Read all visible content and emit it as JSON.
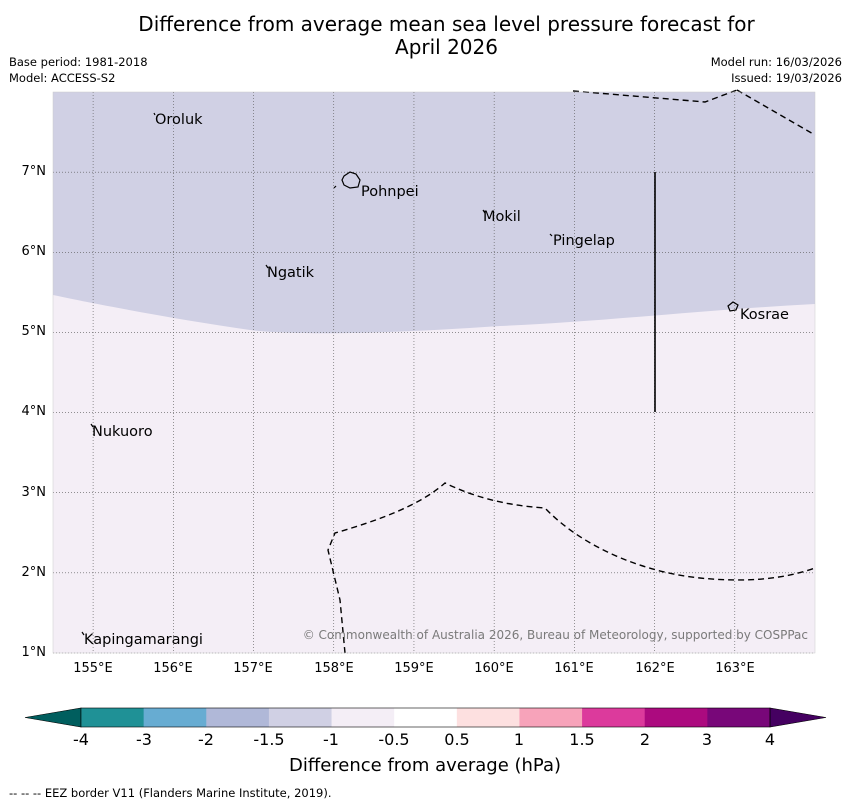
{
  "header": {
    "title_line1": "Difference from average mean sea level pressure forecast for",
    "title_line2": "April 2026",
    "base_period": "Base period: 1981-2018",
    "model": "Model: ACCESS-S2",
    "model_run": "Model run: 16/03/2026",
    "issued": "Issued: 19/03/2026"
  },
  "map": {
    "lon_range": [
      154.5,
      164.0
    ],
    "lat_range": [
      1.0,
      8.0
    ],
    "lat_labels": [
      "7°N",
      "6°N",
      "5°N",
      "4°N",
      "3°N",
      "2°N",
      "1°N"
    ],
    "lon_labels": [
      "155°E",
      "156°E",
      "157°E",
      "158°E",
      "159°E",
      "160°E",
      "161°E",
      "162°E",
      "163°E"
    ],
    "places": [
      {
        "name": "Oroluk",
        "lon": 155.75,
        "lat": 7.62
      },
      {
        "name": "Pohnpei",
        "lon": 158.32,
        "lat": 6.83
      },
      {
        "name": "Mokil",
        "lon": 159.85,
        "lat": 6.42
      },
      {
        "name": "Pingelap",
        "lon": 160.73,
        "lat": 6.15
      },
      {
        "name": "Ngatik",
        "lon": 157.15,
        "lat": 5.78
      },
      {
        "name": "Kosrae",
        "lon": 163.03,
        "lat": 5.24
      },
      {
        "name": "Nukuoro",
        "lon": 154.97,
        "lat": 3.75
      },
      {
        "name": "Kapingamarangi",
        "lon": 154.87,
        "lat": 1.08
      }
    ],
    "fill_colors": {
      "lower": "#d0d0e4",
      "upper": "#f4eef6"
    },
    "credit": "© Commonwealth of Australia 2026, Bureau of Meteorology, supported by COSPPac"
  },
  "colorbar": {
    "label": "Difference from average (hPa)",
    "ticks": [
      "-4",
      "-3",
      "-2",
      "-1.5",
      "-1",
      "-0.5",
      "0.5",
      "1",
      "1.5",
      "2",
      "3",
      "4"
    ],
    "colors": [
      "#1f9196",
      "#67acd2",
      "#b0b8d8",
      "#d0d0e4",
      "#f4eef6",
      "#ffffff",
      "#fde0e0",
      "#f7a3ba",
      "#dc3a9c",
      "#ac0a7f",
      "#780779"
    ],
    "low_color": "#005e5e",
    "high_color": "#450061"
  },
  "footer": {
    "eez_note": "-- -- -- EEZ border V11 (Flanders Marine Institute, 2019)."
  }
}
